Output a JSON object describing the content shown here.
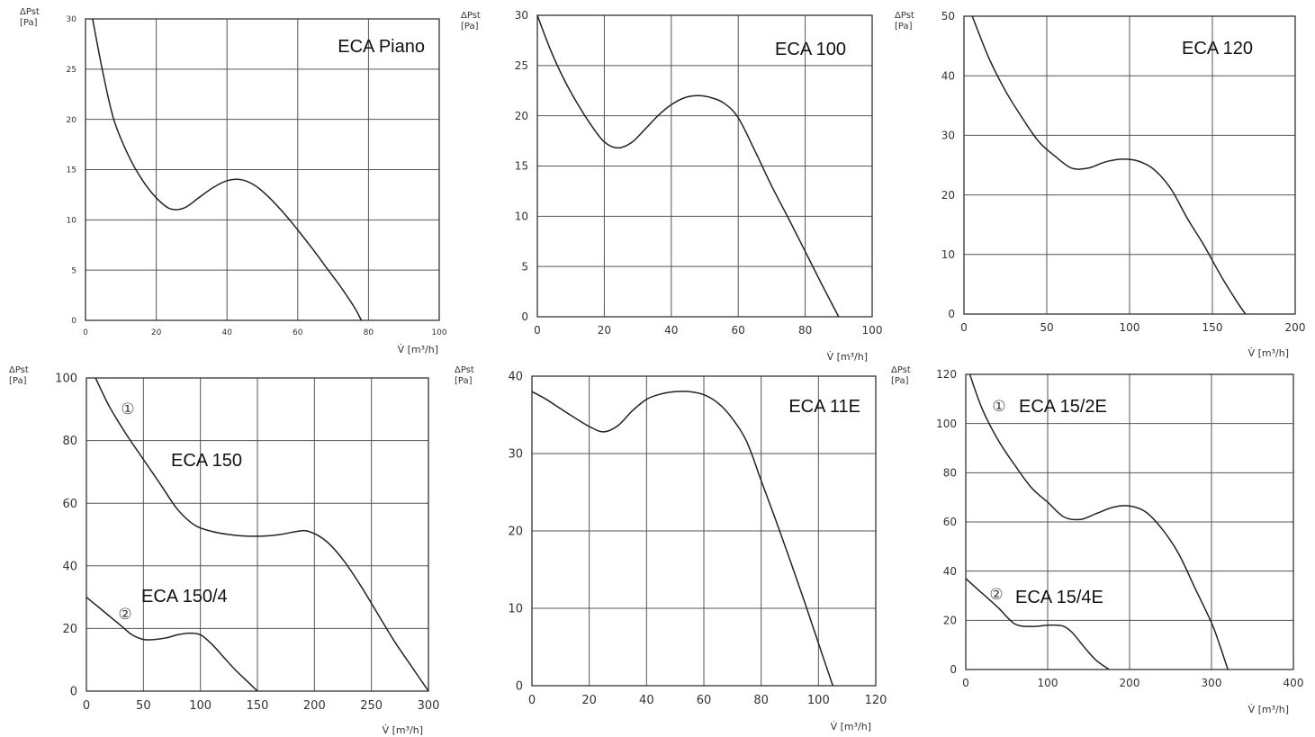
{
  "chart_data": [
    {
      "type": "line",
      "title": "ECA Piano",
      "ylabel": "ΔPst [Pa]",
      "xlabel": "V̇ [m³/h]",
      "xlim": [
        0,
        100
      ],
      "ylim": [
        0,
        30
      ],
      "xticks": [
        0,
        20,
        40,
        60,
        80,
        100
      ],
      "yticks": [
        0,
        5,
        10,
        15,
        20,
        25,
        30
      ],
      "grid": true,
      "series": [
        {
          "x": [
            2,
            5,
            8,
            12,
            16,
            20,
            24,
            28,
            32,
            36,
            40,
            44,
            48,
            52,
            56,
            60,
            64,
            68,
            72,
            76,
            78
          ],
          "y": [
            30,
            24.5,
            20,
            16.5,
            14,
            12.2,
            11.1,
            11.2,
            12.2,
            13.2,
            13.9,
            14,
            13.4,
            12.2,
            10.7,
            9,
            7.2,
            5.3,
            3.4,
            1.3,
            0
          ]
        }
      ]
    },
    {
      "type": "line",
      "title": "ECA 100",
      "ylabel": "ΔPst [Pa]",
      "xlabel": "V̇ [m³/h]",
      "xlim": [
        0,
        100
      ],
      "ylim": [
        0,
        30
      ],
      "xticks": [
        0,
        20,
        40,
        60,
        80,
        100
      ],
      "yticks": [
        0,
        5,
        10,
        15,
        20,
        25,
        30
      ],
      "grid": true,
      "series": [
        {
          "x": [
            0,
            4,
            8,
            12,
            16,
            20,
            24,
            28,
            32,
            36,
            40,
            44,
            48,
            52,
            56,
            60,
            65,
            70,
            75,
            80,
            85,
            90
          ],
          "y": [
            30,
            26.5,
            23.6,
            21.2,
            19.1,
            17.4,
            16.8,
            17.3,
            18.6,
            20,
            21.1,
            21.8,
            22,
            21.8,
            21.2,
            19.8,
            16.5,
            13,
            9.8,
            6.5,
            3.2,
            0
          ]
        }
      ]
    },
    {
      "type": "line",
      "title": "ECA 120",
      "ylabel": "ΔPst [Pa]",
      "xlabel": "V̇ [m³/h]",
      "xlim": [
        0,
        200
      ],
      "ylim": [
        0,
        50
      ],
      "xticks": [
        0,
        50,
        100,
        150,
        200
      ],
      "yticks": [
        0,
        10,
        20,
        30,
        40,
        50
      ],
      "grid": true,
      "series": [
        {
          "x": [
            5,
            15,
            25,
            35,
            45,
            55,
            65,
            75,
            85,
            95,
            105,
            115,
            125,
            135,
            145,
            155,
            165,
            170
          ],
          "y": [
            50,
            43,
            37.5,
            33,
            29,
            26.5,
            24.5,
            24.5,
            25.5,
            26,
            25.7,
            24.2,
            21,
            16,
            11.5,
            6.5,
            2,
            0
          ]
        }
      ]
    },
    {
      "type": "line",
      "title": "",
      "ylabel": "ΔPst [Pa]",
      "xlabel": "V̇ [m³/h]",
      "xlim": [
        0,
        300
      ],
      "ylim": [
        0,
        100
      ],
      "xticks": [
        0,
        50,
        100,
        150,
        200,
        250,
        300
      ],
      "yticks": [
        0,
        20,
        40,
        60,
        80,
        100
      ],
      "grid": true,
      "annotations": [
        {
          "marker": "①",
          "label": "ECA 150"
        },
        {
          "marker": "②",
          "label": "ECA 150/4"
        }
      ],
      "series": [
        {
          "x": [
            8,
            20,
            35,
            50,
            65,
            80,
            95,
            110,
            125,
            140,
            155,
            170,
            185,
            195,
            210,
            225,
            240,
            255,
            270,
            285,
            300
          ],
          "y": [
            100,
            91,
            82,
            74,
            66,
            58,
            53,
            51,
            50,
            49.5,
            49.5,
            50,
            51,
            51,
            48,
            42,
            34,
            25,
            16,
            8,
            0
          ]
        },
        {
          "x": [
            0,
            10,
            20,
            30,
            40,
            50,
            60,
            70,
            80,
            90,
            100,
            110,
            120,
            130,
            140,
            150
          ],
          "y": [
            30,
            27,
            24,
            21,
            18,
            16.5,
            16.5,
            17,
            18,
            18.5,
            18,
            15,
            11,
            7,
            3.5,
            0
          ]
        }
      ]
    },
    {
      "type": "line",
      "title": "ECA 11E",
      "ylabel": "ΔPst [Pa]",
      "xlabel": "V̇ [m³/h]",
      "xlim": [
        0,
        120
      ],
      "ylim": [
        0,
        40
      ],
      "xticks": [
        0,
        20,
        40,
        60,
        80,
        100,
        120
      ],
      "yticks": [
        0,
        10,
        20,
        30,
        40
      ],
      "grid": true,
      "series": [
        {
          "x": [
            0,
            5,
            10,
            15,
            20,
            25,
            30,
            35,
            40,
            45,
            50,
            55,
            60,
            65,
            70,
            75,
            80,
            85,
            90,
            95,
            100,
            105
          ],
          "y": [
            38,
            37,
            35.8,
            34.6,
            33.5,
            32.8,
            33.6,
            35.5,
            37,
            37.7,
            38,
            38,
            37.6,
            36.5,
            34.5,
            31.5,
            26.5,
            21.5,
            16.3,
            11,
            5.5,
            0
          ]
        }
      ]
    },
    {
      "type": "line",
      "title": "",
      "ylabel": "ΔPst [Pa]",
      "xlabel": "V̇ [m³/h]",
      "xlim": [
        0,
        400
      ],
      "ylim": [
        0,
        120
      ],
      "xticks": [
        0,
        100,
        200,
        300,
        400
      ],
      "yticks": [
        0,
        20,
        40,
        60,
        80,
        100,
        120
      ],
      "grid": true,
      "annotations": [
        {
          "marker": "①",
          "label": "ECA 15/2E"
        },
        {
          "marker": "②",
          "label": "ECA 15/4E"
        }
      ],
      "series": [
        {
          "x": [
            5,
            20,
            40,
            60,
            80,
            100,
            120,
            140,
            160,
            180,
            200,
            220,
            240,
            260,
            280,
            300,
            310,
            320
          ],
          "y": [
            120,
            106,
            93,
            83,
            74,
            68,
            62,
            61,
            63.5,
            66,
            66.5,
            64,
            57,
            47,
            33,
            19,
            10,
            0
          ]
        },
        {
          "x": [
            0,
            20,
            40,
            60,
            80,
            100,
            110,
            120,
            130,
            140,
            150,
            160,
            175
          ],
          "y": [
            37,
            31,
            25,
            18.5,
            17.5,
            18,
            18,
            17.5,
            15,
            11,
            7,
            3.5,
            0
          ]
        }
      ]
    }
  ]
}
